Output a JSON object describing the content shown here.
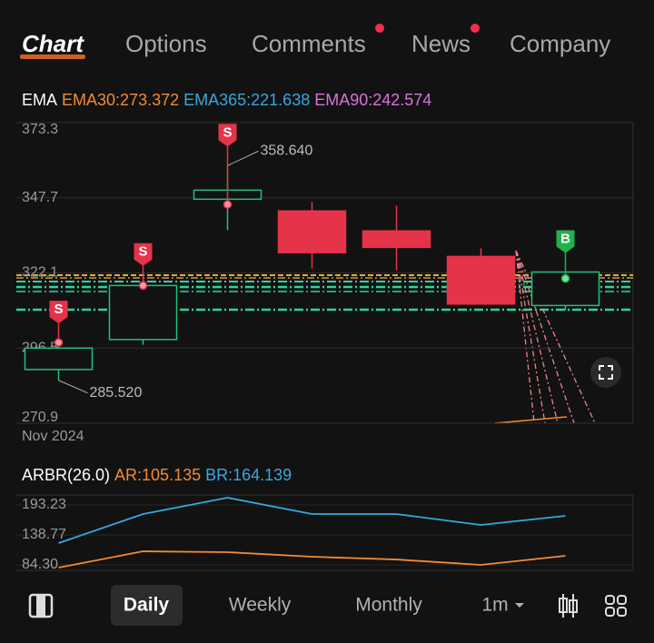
{
  "tabs": {
    "items": [
      "Chart",
      "Options",
      "Comments",
      "News",
      "Company"
    ],
    "active": 0
  },
  "main_chart": {
    "type": "candlestick",
    "legend": [
      {
        "text": "EMA",
        "color": "#ffffff"
      },
      {
        "text": "EMA30:273.372",
        "color": "#f58a2f"
      },
      {
        "text": "EMA365:221.638",
        "color": "#35a8e0"
      },
      {
        "text": "EMA90:242.574",
        "color": "#d972d9"
      }
    ],
    "ylim": [
      270.9,
      373.3
    ],
    "yticks": [
      373.3,
      347.7,
      322.1,
      296.5,
      270.9
    ],
    "x_label": "Nov 2024",
    "up_color": "#22c07a",
    "down_color": "#e5334a",
    "candles": {
      "open": [
        289.2,
        299.4,
        347.2,
        343.2,
        336.4,
        327.7,
        311.0
      ],
      "high": [
        298.4,
        318.0,
        358.64,
        346.3,
        345.0,
        330.5,
        322.4
      ],
      "low": [
        285.52,
        297.6,
        336.7,
        323.6,
        323.0,
        311.5,
        309.4
      ],
      "close": [
        296.5,
        317.8,
        350.3,
        329.0,
        330.8,
        311.5,
        322.4
      ]
    },
    "signals": [
      "S",
      "S",
      "S",
      null,
      null,
      null,
      "B"
    ],
    "signal_prices": [
      298.4,
      317.8,
      345.4,
      null,
      null,
      null,
      320.2
    ],
    "high_label": "358.640",
    "low_label": "285.520"
  },
  "sub_chart": {
    "type": "line",
    "legend": [
      {
        "text": "ARBR(26.0)",
        "color": "#ffffff"
      },
      {
        "text": "AR:105.135",
        "color": "#f58a2f"
      },
      {
        "text": "BR:164.139",
        "color": "#35a8e0"
      }
    ],
    "ylim": [
      74.4,
      211.4
    ],
    "yticks": [
      193.23,
      138.77,
      {
        "value": 84.3,
        "label": "84.30"
      }
    ],
    "series": [
      {
        "color": "#f58a2f",
        "values": [
          79.3,
          109.0,
          107.4,
          99.1,
          94.1,
          84.3,
          100.8
        ]
      },
      {
        "color": "#35a8e0",
        "values": [
          123.9,
          176.7,
          206.4,
          176.7,
          176.7,
          156.9,
          173.4
        ]
      }
    ]
  },
  "toolbar": {
    "periods": [
      "Daily",
      "Weekly",
      "Monthly",
      "1m"
    ],
    "active": 0
  }
}
